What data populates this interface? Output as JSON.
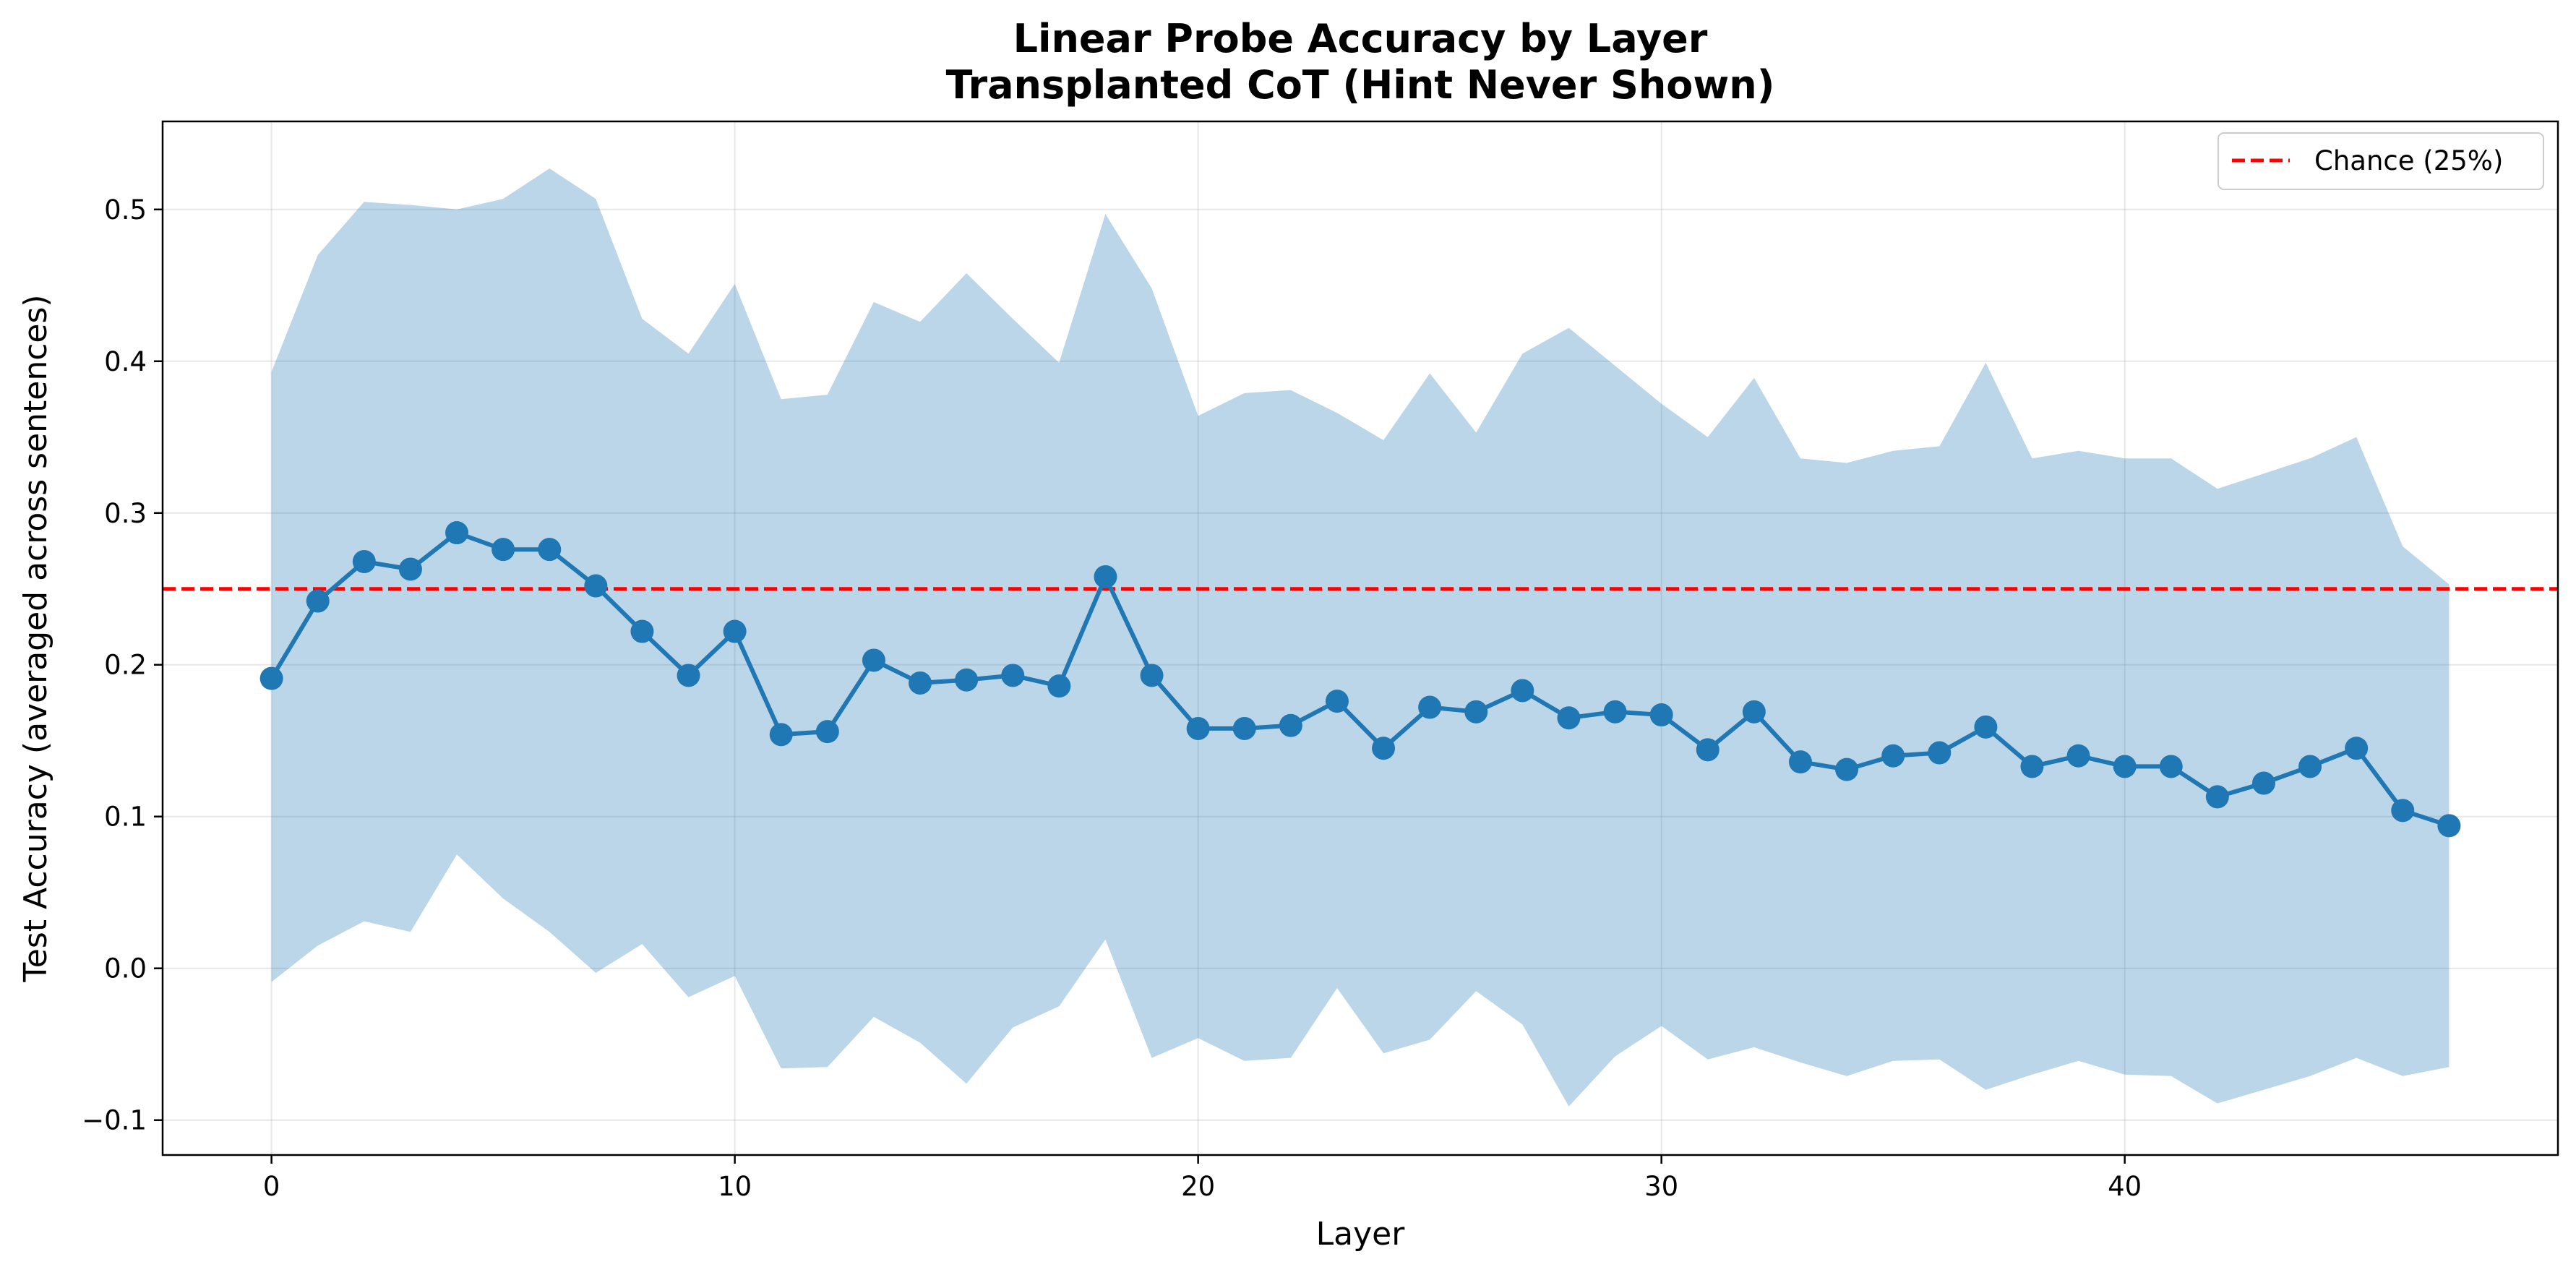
{
  "chart_data": {
    "type": "line",
    "title_line1": "Linear Probe Accuracy by Layer",
    "title_line2": "Transplanted CoT (Hint Never Shown)",
    "xlabel": "Layer",
    "ylabel": "Test Accuracy (averaged across sentences)",
    "xlim": [
      -2.35,
      49.35
    ],
    "ylim": [
      -0.123,
      0.558
    ],
    "xticks": [
      0,
      10,
      20,
      30,
      40
    ],
    "yticks": [
      -0.1,
      0.0,
      0.1,
      0.2,
      0.3,
      0.4,
      0.5
    ],
    "ytick_labels": [
      "−0.1",
      "0.0",
      "0.1",
      "0.2",
      "0.3",
      "0.4",
      "0.5"
    ],
    "grid": true,
    "legend_position": "top-right",
    "x": [
      0,
      1,
      2,
      3,
      4,
      5,
      6,
      7,
      8,
      9,
      10,
      11,
      12,
      13,
      14,
      15,
      16,
      17,
      18,
      19,
      20,
      21,
      22,
      23,
      24,
      25,
      26,
      27,
      28,
      29,
      30,
      31,
      32,
      33,
      34,
      35,
      36,
      37,
      38,
      39,
      40,
      41,
      42,
      43,
      44,
      45,
      46,
      47
    ],
    "series": [
      {
        "type": "line",
        "color": "#1f77b4",
        "marker": "circle",
        "values": [
          0.191,
          0.242,
          0.268,
          0.263,
          0.287,
          0.276,
          0.276,
          0.252,
          0.222,
          0.193,
          0.222,
          0.154,
          0.156,
          0.203,
          0.188,
          0.19,
          0.193,
          0.186,
          0.258,
          0.193,
          0.158,
          0.158,
          0.16,
          0.176,
          0.145,
          0.172,
          0.169,
          0.183,
          0.165,
          0.169,
          0.167,
          0.144,
          0.169,
          0.136,
          0.131,
          0.14,
          0.142,
          0.159,
          0.133,
          0.14,
          0.133,
          0.133,
          0.113,
          0.122,
          0.133,
          0.145,
          0.104,
          0.094
        ]
      },
      {
        "type": "band",
        "color": "#1f77b4",
        "opacity": 0.3,
        "upper": [
          0.393,
          0.47,
          0.505,
          0.503,
          0.5,
          0.507,
          0.527,
          0.507,
          0.428,
          0.405,
          0.451,
          0.375,
          0.378,
          0.439,
          0.426,
          0.458,
          0.428,
          0.399,
          0.497,
          0.448,
          0.364,
          0.379,
          0.381,
          0.366,
          0.348,
          0.392,
          0.353,
          0.405,
          0.422,
          0.397,
          0.372,
          0.35,
          0.389,
          0.336,
          0.333,
          0.341,
          0.344,
          0.399,
          0.336,
          0.341,
          0.336,
          0.336,
          0.316,
          0.326,
          0.336,
          0.35,
          0.278,
          0.253
        ],
        "lower": [
          -0.009,
          0.015,
          0.031,
          0.024,
          0.075,
          0.046,
          0.024,
          -0.003,
          0.016,
          -0.019,
          -0.005,
          -0.066,
          -0.065,
          -0.032,
          -0.049,
          -0.076,
          -0.039,
          -0.025,
          0.019,
          -0.059,
          -0.046,
          -0.061,
          -0.059,
          -0.013,
          -0.056,
          -0.047,
          -0.015,
          -0.037,
          -0.091,
          -0.058,
          -0.038,
          -0.06,
          -0.052,
          -0.062,
          -0.071,
          -0.061,
          -0.06,
          -0.08,
          -0.07,
          -0.061,
          -0.07,
          -0.071,
          -0.089,
          -0.08,
          -0.071,
          -0.059,
          -0.071,
          -0.065
        ]
      },
      {
        "type": "hline",
        "name": "Chance (25%)",
        "y": 0.25,
        "color": "#ff0000",
        "style": "dashed"
      }
    ]
  }
}
